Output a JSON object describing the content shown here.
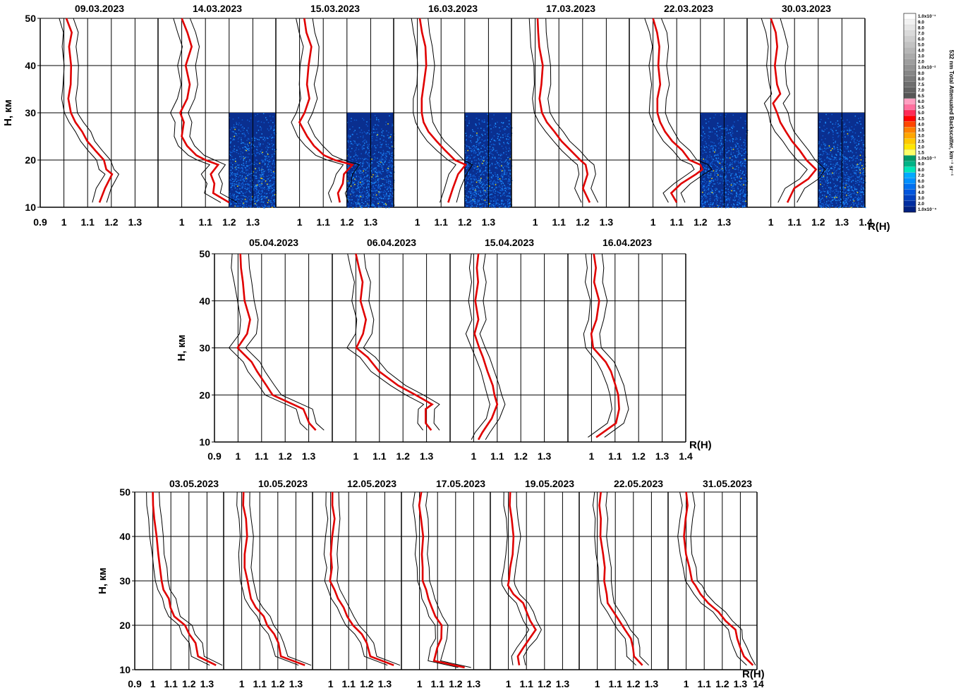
{
  "chart_data": {
    "type": "line",
    "y_axis_label": "H, км",
    "x_axis_label": "R(H)",
    "ylim": [
      10,
      50
    ],
    "yticks": [
      "10",
      "20",
      "30",
      "40",
      "50"
    ],
    "colorbar": {
      "title": "532 nm Total Attenuated Backscatter, km⁻¹ sr⁻¹",
      "labels": [
        "1.0x10⁻¹",
        "9.0",
        "8.0",
        "7.0",
        "6.0",
        "5.0",
        "4.0",
        "3.0",
        "2.0",
        "1.0x10⁻²",
        "9.0",
        "8.0",
        "7.5",
        "7.0",
        "6.5",
        "6.0",
        "5.5",
        "5.0",
        "4.5",
        "4.0",
        "3.5",
        "3.0",
        "2.5",
        "2.0",
        "1.5",
        "1.0x10⁻³",
        "9.0",
        "8.0",
        "7.0",
        "6.0",
        "5.0",
        "4.0",
        "3.0",
        "2.0",
        "1.0x10⁻⁴"
      ],
      "colors": [
        "#ffffff",
        "#f2f2f2",
        "#e6e6e6",
        "#dadada",
        "#cecece",
        "#c2c2c2",
        "#b6b6b6",
        "#aaaaaa",
        "#9e9e9e",
        "#929292",
        "#868686",
        "#7a7a7a",
        "#6e6e6e",
        "#626262",
        "#565656",
        "#ff9ec0",
        "#ff6f9e",
        "#ff2a56",
        "#ff0000",
        "#ff4500",
        "#ff8000",
        "#ffa500",
        "#ffc800",
        "#ffe600",
        "#ffff66",
        "#009966",
        "#00b386",
        "#00e6b8",
        "#00aaff",
        "#0090ff",
        "#0070f0",
        "#0055dd",
        "#0040c0",
        "#002da0",
        "#002080"
      ]
    },
    "rows": [
      {
        "xticks": [
          "0.9",
          "1",
          "1.1",
          "1.2",
          "1.3",
          "1",
          "1.1",
          "1.2",
          "1.3",
          "1",
          "1.1",
          "1.2",
          "1.3",
          "1",
          "1.1",
          "1.2",
          "1.3",
          "1",
          "1.1",
          "1.2",
          "1.3",
          "1",
          "1.1",
          "1.2",
          "1.3",
          "1",
          "1.1",
          "1.2",
          "1.3",
          "1.4"
        ],
        "panels": [
          {
            "date": "09.03.2023",
            "H": [
              11,
              14,
              17,
              18,
              20,
              22,
              24,
              26,
              28,
              30,
              33,
              36,
              40,
              44,
              47,
              50
            ],
            "R": [
              1.15,
              1.17,
              1.2,
              1.18,
              1.17,
              1.13,
              1.1,
              1.08,
              1.05,
              1.03,
              1.02,
              1.025,
              1.03,
              1.02,
              1.03,
              1.01
            ],
            "spread": 0.03,
            "backscatter": false
          },
          {
            "date": "14.03.2023",
            "H": [
              11,
              13,
              15,
              17,
              19,
              20,
              21,
              23,
              25,
              28,
              30,
              33,
              36,
              40,
              44,
              47,
              50
            ],
            "R": [
              1.2,
              1.13,
              1.14,
              1.12,
              1.15,
              1.1,
              1.06,
              1.02,
              1.0,
              1.01,
              0.99,
              1.02,
              1.03,
              1.02,
              1.04,
              1.02,
              1.0
            ],
            "spread": 0.035,
            "backscatter": true
          },
          {
            "date": "15.03.2023",
            "H": [
              11,
              13,
              15,
              17,
              19,
              20,
              21,
              23,
              25,
              28,
              30,
              33,
              36,
              40,
              44,
              47,
              50
            ],
            "R": [
              1.17,
              1.16,
              1.18,
              1.19,
              1.22,
              1.15,
              1.1,
              1.06,
              1.03,
              1.0,
              1.02,
              1.04,
              1.03,
              1.04,
              1.05,
              1.03,
              1.02
            ],
            "spread": 0.035,
            "backscatter": true
          },
          {
            "date": "16.03.2023",
            "H": [
              11,
              14,
              17,
              19,
              20,
              22,
              24,
              26,
              28,
              30,
              33,
              36,
              40,
              44,
              47,
              50
            ],
            "R": [
              1.13,
              1.15,
              1.17,
              1.2,
              1.16,
              1.12,
              1.08,
              1.05,
              1.03,
              1.02,
              1.02,
              1.03,
              1.04,
              1.03,
              1.02,
              1.01
            ],
            "spread": 0.035,
            "backscatter": true
          },
          {
            "date": "17.03.2023",
            "H": [
              11,
              14,
              17,
              19,
              20,
              22,
              24,
              26,
              28,
              30,
              33,
              36,
              40,
              44,
              47,
              50
            ],
            "R": [
              1.23,
              1.2,
              1.22,
              1.21,
              1.19,
              1.15,
              1.11,
              1.08,
              1.05,
              1.03,
              1.02,
              1.03,
              1.03,
              1.02,
              1.01,
              1.01
            ],
            "spread": 0.035,
            "backscatter": false
          },
          {
            "date": "22.03.2023",
            "H": [
              11,
              13,
              15,
              17,
              18,
              19,
              20,
              22,
              24,
              26,
              28,
              30,
              33,
              36,
              40,
              44,
              47,
              50
            ],
            "R": [
              1.1,
              1.08,
              1.12,
              1.18,
              1.21,
              1.2,
              1.15,
              1.12,
              1.08,
              1.05,
              1.03,
              1.02,
              1.02,
              1.03,
              1.02,
              1.03,
              1.02,
              1.0
            ],
            "spread": 0.035,
            "backscatter": true
          },
          {
            "date": "30.03.2023",
            "H": [
              11,
              14,
              16,
              18,
              20,
              22,
              24,
              26,
              28,
              30,
              32,
              34,
              36,
              40,
              44,
              47,
              50
            ],
            "R": [
              1.07,
              1.1,
              1.16,
              1.19,
              1.15,
              1.12,
              1.09,
              1.06,
              1.04,
              1.03,
              1.01,
              1.04,
              1.03,
              1.02,
              1.03,
              1.02,
              1.0
            ],
            "spread": 0.04,
            "backscatter": true
          }
        ]
      },
      {
        "xticks": [
          "0.9",
          "1",
          "1.1",
          "1.2",
          "1.3",
          "1",
          "1.1",
          "1.2",
          "1.3",
          "1",
          "1.1",
          "1.2",
          "1.3",
          "1",
          "1.1",
          "1.2",
          "1.3",
          "1.4"
        ],
        "panels": [
          {
            "date": "05.04.2023",
            "H": [
              12.5,
              14,
              17,
              20,
              22,
              25,
              27,
              30,
              33,
              36,
              40,
              44,
              47,
              50
            ],
            "R": [
              1.33,
              1.3,
              1.28,
              1.15,
              1.12,
              1.08,
              1.06,
              1.0,
              1.04,
              1.05,
              1.03,
              1.02,
              1.01,
              1.01
            ],
            "spread": 0.035
          },
          {
            "date": "06.04.2023",
            "H": [
              12.5,
              14,
              17,
              18,
              20,
              22,
              25,
              28,
              30,
              33,
              36,
              40,
              44,
              47,
              50
            ],
            "R": [
              1.32,
              1.3,
              1.3,
              1.32,
              1.25,
              1.18,
              1.1,
              1.05,
              1.0,
              1.03,
              1.04,
              1.02,
              1.03,
              1.01,
              1.0
            ],
            "spread": 0.035
          },
          {
            "date": "15.04.2023",
            "H": [
              10.5,
              12,
              15,
              18,
              20,
              22,
              25,
              28,
              30,
              33,
              36,
              40,
              44,
              47,
              50
            ],
            "R": [
              1.02,
              1.04,
              1.08,
              1.1,
              1.09,
              1.08,
              1.06,
              1.04,
              1.02,
              1.0,
              1.02,
              1.01,
              1.02,
              1.01,
              1.02
            ],
            "spread": 0.03
          },
          {
            "date": "16.04.2023",
            "H": [
              11,
              14,
              17,
              20,
              22,
              25,
              27,
              30,
              33,
              36,
              40,
              44,
              47,
              50
            ],
            "R": [
              1.02,
              1.1,
              1.12,
              1.11,
              1.1,
              1.08,
              1.06,
              1.01,
              1.0,
              1.02,
              1.03,
              1.01,
              1.02,
              1.01
            ],
            "spread": 0.035
          }
        ]
      },
      {
        "xticks": [
          "0.9",
          "1",
          "1.1",
          "1.2",
          "1.3",
          "1",
          "1.1",
          "1.2",
          "1.3",
          "1",
          "1.1",
          "1.2",
          "1.3",
          "1",
          "1.1",
          "1.2",
          "1.3",
          "1",
          "1.1",
          "1.2",
          "1.3",
          "1",
          "1.1",
          "1.2",
          "1.3",
          "1",
          "1.1",
          "1.2",
          "1.3",
          "14"
        ],
        "panels": [
          {
            "date": "03.05.2023",
            "H": [
              11,
              13,
              16,
              18,
              20,
              22,
              24,
              26,
              28,
              30,
              33,
              36,
              40,
              44,
              47,
              50
            ],
            "R": [
              1.35,
              1.25,
              1.24,
              1.2,
              1.18,
              1.12,
              1.1,
              1.09,
              1.06,
              1.05,
              1.04,
              1.03,
              1.02,
              1.01,
              1.0,
              1.0
            ],
            "spread": 0.035
          },
          {
            "date": "10.05.2023",
            "H": [
              11,
              13,
              16,
              18,
              20,
              22,
              24,
              26,
              28,
              30,
              33,
              36,
              40,
              44,
              47,
              50
            ],
            "R": [
              1.35,
              1.22,
              1.2,
              1.18,
              1.14,
              1.12,
              1.08,
              1.05,
              1.04,
              1.03,
              1.02,
              1.02,
              1.03,
              1.02,
              1.01,
              1.01
            ],
            "spread": 0.035
          },
          {
            "date": "12.05.2023",
            "H": [
              11,
              13,
              16,
              18,
              20,
              22,
              24,
              26,
              28,
              30,
              33,
              36,
              40,
              44,
              47,
              50
            ],
            "R": [
              1.35,
              1.22,
              1.2,
              1.17,
              1.12,
              1.09,
              1.07,
              1.04,
              1.02,
              1.0,
              1.01,
              1.0,
              1.01,
              1.02,
              1.01,
              1.01
            ],
            "spread": 0.035
          },
          {
            "date": "17.05.2023",
            "H": [
              10.5,
              12,
              15,
              17,
              20,
              22,
              24,
              26,
              28,
              30,
              33,
              36,
              40,
              44,
              47,
              50
            ],
            "R": [
              1.25,
              1.08,
              1.1,
              1.12,
              1.12,
              1.09,
              1.07,
              1.05,
              1.04,
              1.02,
              1.02,
              1.01,
              1.02,
              1.01,
              1.0,
              1.01
            ],
            "spread": 0.035
          },
          {
            "date": "19.05.2023",
            "H": [
              11,
              13,
              15,
              17,
              19,
              21,
              23,
              25,
              27,
              29,
              30,
              33,
              36,
              40,
              44,
              47,
              50
            ],
            "R": [
              1.06,
              1.05,
              1.08,
              1.12,
              1.15,
              1.12,
              1.1,
              1.08,
              1.03,
              1.0,
              1.0,
              1.01,
              1.02,
              1.03,
              1.02,
              1.01,
              1.01
            ],
            "spread": 0.035
          },
          {
            "date": "22.05.2023",
            "H": [
              11,
              13,
              15,
              17,
              19,
              21,
              23,
              25,
              27,
              30,
              33,
              36,
              40,
              44,
              47,
              50
            ],
            "R": [
              1.25,
              1.2,
              1.2,
              1.19,
              1.15,
              1.12,
              1.09,
              1.06,
              1.05,
              1.04,
              1.04,
              1.03,
              1.02,
              1.02,
              1.01,
              1.02
            ],
            "spread": 0.035
          },
          {
            "date": "31.05.2023",
            "H": [
              11,
              13,
              15,
              17,
              19,
              21,
              23,
              25,
              27,
              29,
              30,
              33,
              36,
              40,
              44,
              47,
              50
            ],
            "R": [
              1.37,
              1.32,
              1.3,
              1.28,
              1.27,
              1.22,
              1.18,
              1.12,
              1.08,
              1.05,
              1.03,
              1.02,
              1.0,
              0.99,
              1.0,
              1.01,
              1.0
            ],
            "spread": 0.035
          }
        ]
      }
    ]
  }
}
